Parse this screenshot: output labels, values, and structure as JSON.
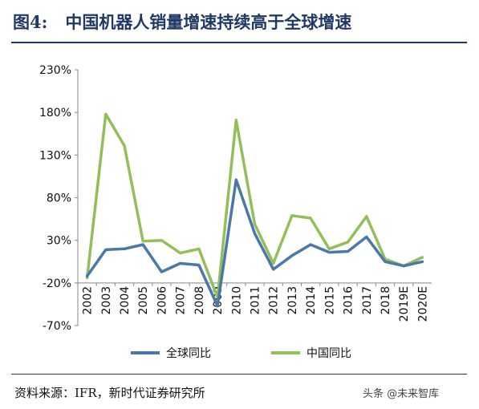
{
  "header": {
    "figure_label": "图4:",
    "title": "中国机器人销量增速持续高于全球增速"
  },
  "footer": {
    "source": "资料来源：IFR，新时代证券研究所",
    "watermark": "头条 @未来智库"
  },
  "chart_data": {
    "type": "line",
    "title": "中国机器人销量增速持续高于全球增速",
    "xlabel": "",
    "ylabel": "",
    "categories": [
      "2002",
      "2003",
      "2004",
      "2005",
      "2006",
      "2007",
      "2008",
      "2009",
      "2010",
      "2011",
      "2012",
      "2013",
      "2014",
      "2015",
      "2016",
      "2017",
      "2018",
      "2019E",
      "2020E"
    ],
    "yticks": [
      "230%",
      "180%",
      "130%",
      "80%",
      "30%",
      "-20%",
      "-70%"
    ],
    "ylim": [
      -70,
      230
    ],
    "grid": false,
    "legend": "bottom",
    "series": [
      {
        "name": "全球同比",
        "color": "#4a78a8",
        "values": [
          -12,
          19,
          20,
          25,
          -7,
          3,
          1,
          -47,
          101,
          38,
          -4,
          12,
          25,
          16,
          17,
          34,
          5,
          0,
          5
        ]
      },
      {
        "name": "中国同比",
        "color": "#92bf5a",
        "values": [
          -14,
          178,
          141,
          29,
          30,
          15,
          20,
          -37,
          171,
          49,
          3,
          59,
          56,
          20,
          28,
          58,
          8,
          0,
          10
        ]
      }
    ]
  }
}
